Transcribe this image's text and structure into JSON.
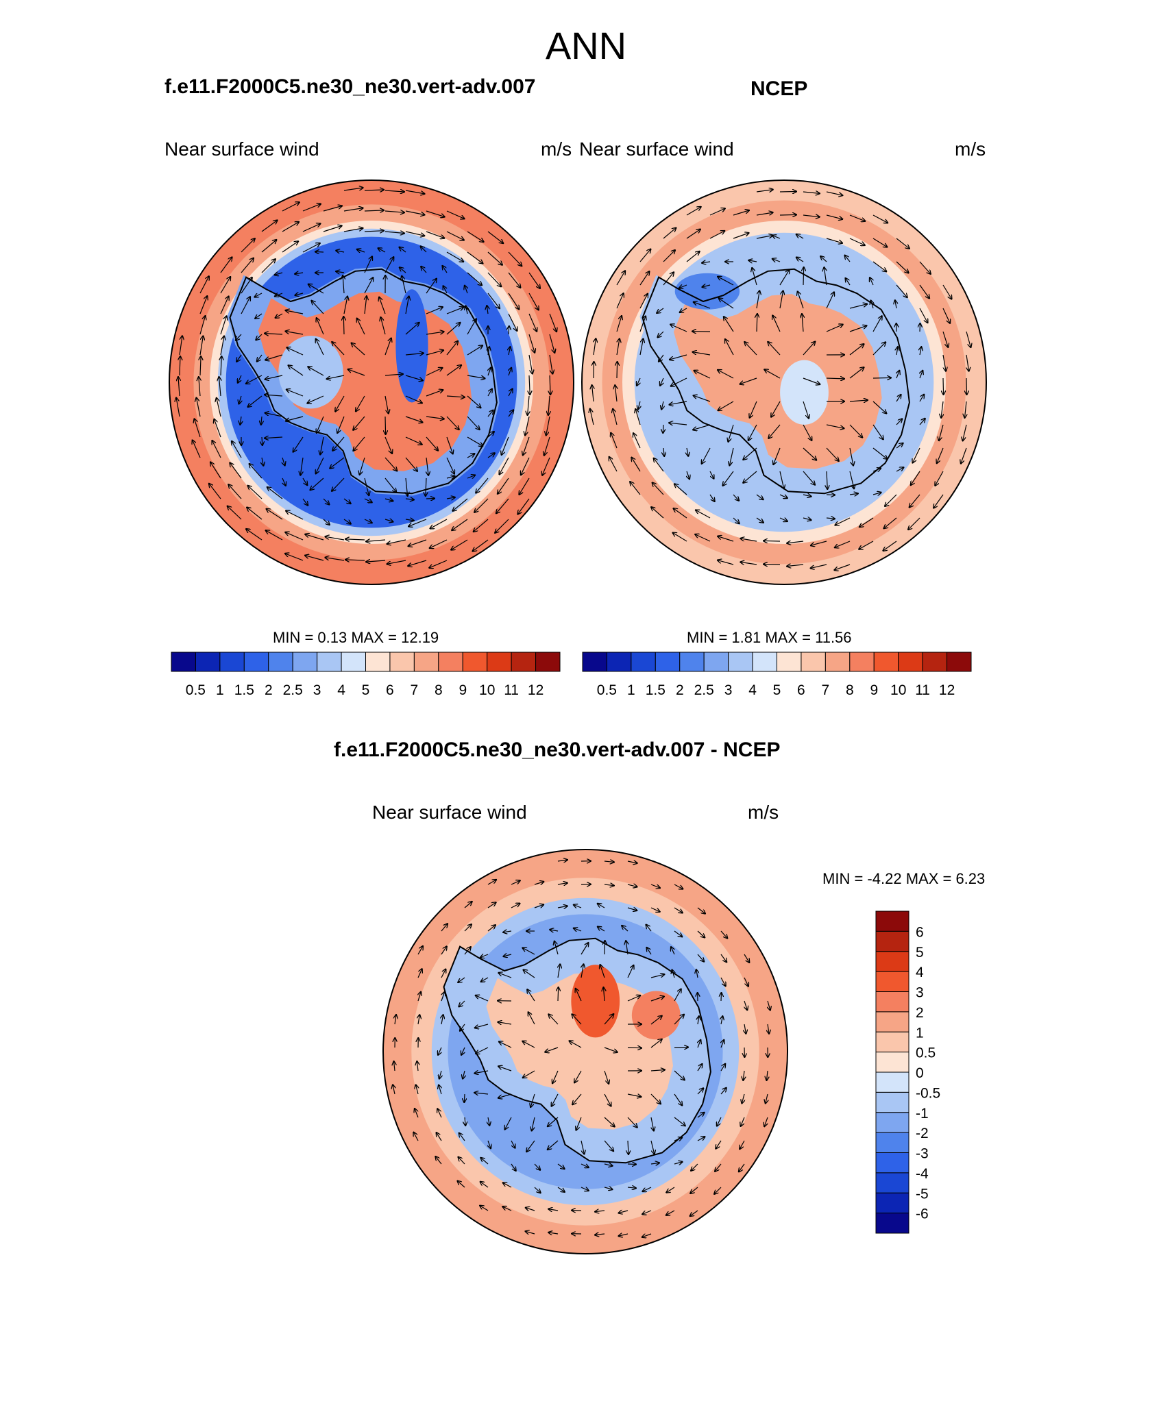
{
  "page": {
    "title": "ANN"
  },
  "colors": {
    "seq": [
      "#08088c",
      "#0c25b4",
      "#1a47d4",
      "#2e62e8",
      "#4f83ec",
      "#7ea6f0",
      "#a9c6f4",
      "#d3e4fa",
      "#fde4d4",
      "#fac6ac",
      "#f6a586",
      "#f48060",
      "#f0582e",
      "#dc3a16",
      "#b52410",
      "#8c0a0a"
    ],
    "div": [
      "#08088c",
      "#0c25b4",
      "#1a47d4",
      "#2e62e8",
      "#4f83ec",
      "#7ea6f0",
      "#a9c6f4",
      "#d3e4fa",
      "#fde4d4",
      "#fac6ac",
      "#f6a586",
      "#f48060",
      "#f0582e",
      "#dc3a16",
      "#b52410",
      "#8c0a0a"
    ]
  },
  "panels": [
    {
      "title": "f.e11.F2000C5.ne30_ne30.vert-adv.007",
      "left_label": "Near surface wind",
      "units": "m/s",
      "min_text": "MIN = ",
      "min_value": "0.13",
      "max_text": "MAX = ",
      "max_value": "12.19"
    },
    {
      "title": "NCEP",
      "left_label": "Near surface wind",
      "units": "m/s",
      "min_text": "MIN = ",
      "min_value": "1.81",
      "max_text": "MAX = ",
      "max_value": "11.56"
    },
    {
      "title": "f.e11.F2000C5.ne30_ne30.vert-adv.007 - NCEP",
      "left_label": "Near surface wind",
      "units": "m/s",
      "min_text": "MIN = ",
      "min_value": "-4.22",
      "max_text": "MAX = ",
      "max_value": "6.23"
    }
  ],
  "chart_data": [
    {
      "type": "heatmap",
      "projection": "south-polar-stereographic",
      "title": "f.e11.F2000C5.ne30_ne30.vert-adv.007",
      "variable": "Near surface wind",
      "units": "m/s",
      "min": 0.13,
      "max": 12.19,
      "colorbar": {
        "orientation": "horizontal",
        "tick_labels": [
          "0.5",
          "1",
          "1.5",
          "2",
          "2.5",
          "3",
          "4",
          "5",
          "6",
          "7",
          "8",
          "9",
          "10",
          "11",
          "12"
        ]
      }
    },
    {
      "type": "heatmap",
      "projection": "south-polar-stereographic",
      "title": "NCEP",
      "variable": "Near surface wind",
      "units": "m/s",
      "min": 1.81,
      "max": 11.56,
      "colorbar": {
        "orientation": "horizontal",
        "tick_labels": [
          "0.5",
          "1",
          "1.5",
          "2",
          "2.5",
          "3",
          "4",
          "5",
          "6",
          "7",
          "8",
          "9",
          "10",
          "11",
          "12"
        ]
      }
    },
    {
      "type": "heatmap",
      "projection": "south-polar-stereographic",
      "title": "f.e11.F2000C5.ne30_ne30.vert-adv.007 - NCEP",
      "variable": "Near surface wind",
      "units": "m/s",
      "min": -4.22,
      "max": 6.23,
      "colorbar": {
        "orientation": "vertical",
        "tick_labels": [
          "6",
          "5",
          "4",
          "3",
          "2",
          "1",
          "0.5",
          "0",
          "-0.5",
          "-1",
          "-2",
          "-3",
          "-4",
          "-5",
          "-6"
        ]
      }
    }
  ]
}
